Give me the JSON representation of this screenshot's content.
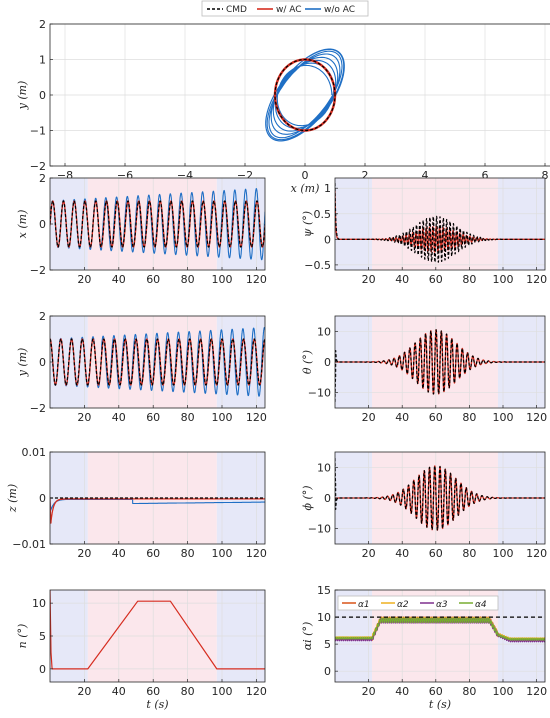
{
  "legend": {
    "entries": [
      {
        "label": "CMD",
        "color": "#000000",
        "style": "dashed"
      },
      {
        "label": "w/ AC",
        "color": "#D62D20",
        "style": "solid"
      },
      {
        "label": "w/o AC",
        "color": "#1F6FC5",
        "style": "solid"
      }
    ]
  },
  "colors": {
    "cmd": "#000000",
    "with_ac": "#D62D20",
    "without_ac": "#1F6FC5",
    "phase_blue": "#E6E8F8",
    "phase_pink": "#FBE7EC",
    "grid": "#DEDEDE",
    "alpha1": "#D95319",
    "alpha2": "#EDB120",
    "alpha3": "#7E2F8E",
    "alpha4": "#77AC30"
  },
  "chart_data": [
    {
      "id": "xy",
      "type": "line",
      "xlabel": "x (m)",
      "ylabel": "y (m)",
      "xlim": [
        -8.5,
        8.5
      ],
      "ylim": [
        -2,
        2
      ],
      "xticks": [
        -8,
        -6,
        -4,
        -2,
        0,
        2,
        4,
        6,
        8
      ],
      "yticks": [
        -2,
        -1,
        0,
        1,
        2
      ],
      "grid": true,
      "series": [
        {
          "key": "cmd",
          "description": "circle of radius about 1.0 m centered at origin"
        },
        {
          "key": "with_ac",
          "description": "circle of radius about 1.0 m tracking command"
        },
        {
          "key": "without_ac",
          "description": "tilted elliptical loops reaching about x 1.5, y 1.1"
        }
      ]
    },
    {
      "id": "x_t",
      "type": "line",
      "xlabel": "",
      "ylabel": "x (m)",
      "xlim": [
        0,
        125
      ],
      "ylim": [
        -2,
        2
      ],
      "xticks": [
        20,
        40,
        60,
        80,
        100,
        120
      ],
      "yticks": [
        -2,
        0,
        2
      ],
      "grid": true,
      "phases": [
        [
          0,
          22,
          "blue"
        ],
        [
          22,
          97,
          "pink"
        ],
        [
          97,
          125,
          "blue"
        ]
      ],
      "series": [
        {
          "key": "cmd",
          "amplitude": 1.0,
          "frequency_hz": 0.16
        },
        {
          "key": "with_ac",
          "amplitude": 1.0,
          "frequency_hz": 0.16
        },
        {
          "key": "without_ac",
          "amplitude_start": 1.0,
          "amplitude_end": 1.55,
          "frequency_hz": 0.16
        }
      ]
    },
    {
      "id": "psi_t",
      "type": "line",
      "xlabel": "",
      "ylabel": "ψ (°)",
      "xlim": [
        0,
        125
      ],
      "ylim": [
        -0.6,
        1.2
      ],
      "xticks": [
        20,
        40,
        60,
        80,
        100,
        120
      ],
      "yticks": [
        -0.5,
        0,
        0.5,
        1
      ],
      "grid": true,
      "phases": [
        [
          0,
          22,
          "blue"
        ],
        [
          22,
          97,
          "pink"
        ],
        [
          97,
          125,
          "blue"
        ]
      ],
      "series": [
        {
          "key": "cmd",
          "peak": 0.45,
          "peak_time": 60
        },
        {
          "key": "with_ac",
          "peak": 0.25,
          "peak_time": 60
        }
      ]
    },
    {
      "id": "y_t",
      "type": "line",
      "xlabel": "",
      "ylabel": "y (m)",
      "xlim": [
        0,
        125
      ],
      "ylim": [
        -2,
        2
      ],
      "xticks": [
        20,
        40,
        60,
        80,
        100,
        120
      ],
      "yticks": [
        -2,
        0,
        2
      ],
      "grid": true,
      "phases": [
        [
          0,
          22,
          "blue"
        ],
        [
          22,
          97,
          "pink"
        ],
        [
          97,
          125,
          "blue"
        ]
      ],
      "series": [
        {
          "key": "cmd",
          "amplitude": 1.0,
          "frequency_hz": 0.16
        },
        {
          "key": "with_ac",
          "amplitude": 1.0,
          "frequency_hz": 0.16
        },
        {
          "key": "without_ac",
          "amplitude_start": 1.0,
          "amplitude_end": 1.5,
          "frequency_hz": 0.16
        }
      ]
    },
    {
      "id": "theta_t",
      "type": "line",
      "xlabel": "",
      "ylabel": "θ (°)",
      "xlim": [
        0,
        125
      ],
      "ylim": [
        -15,
        15
      ],
      "xticks": [
        20,
        40,
        60,
        80,
        100,
        120
      ],
      "yticks": [
        -10,
        0,
        10
      ],
      "grid": true,
      "phases": [
        [
          0,
          22,
          "blue"
        ],
        [
          22,
          97,
          "pink"
        ],
        [
          97,
          125,
          "blue"
        ]
      ],
      "series": [
        {
          "key": "cmd",
          "peak": 10.5,
          "peak_time": 60
        },
        {
          "key": "with_ac",
          "peak": 10.5,
          "peak_time": 60
        }
      ]
    },
    {
      "id": "z_t",
      "type": "line",
      "xlabel": "",
      "ylabel": "z (m)",
      "xlim": [
        0,
        125
      ],
      "ylim": [
        -0.01,
        0.01
      ],
      "xticks": [
        20,
        40,
        60,
        80,
        100,
        120
      ],
      "yticks": [
        -0.01,
        0,
        0.01
      ],
      "yticklabels": [
        "-0.01",
        "0",
        "0.01"
      ],
      "grid": true,
      "phases": [
        [
          0,
          22,
          "blue"
        ],
        [
          22,
          97,
          "pink"
        ],
        [
          97,
          125,
          "blue"
        ]
      ],
      "series": [
        {
          "key": "cmd",
          "value": 0
        },
        {
          "key": "with_ac",
          "initial_dip": -0.0075,
          "value": -0.0002
        },
        {
          "key": "without_ac",
          "initial_dip": -0.003,
          "value_after_50s": -0.0012
        }
      ]
    },
    {
      "id": "phi_t",
      "type": "line",
      "xlabel": "",
      "ylabel": "ϕ (°)",
      "xlim": [
        0,
        125
      ],
      "ylim": [
        -15,
        15
      ],
      "xticks": [
        20,
        40,
        60,
        80,
        100,
        120
      ],
      "yticks": [
        -10,
        0,
        10
      ],
      "grid": true,
      "phases": [
        [
          0,
          22,
          "blue"
        ],
        [
          22,
          97,
          "pink"
        ],
        [
          97,
          125,
          "blue"
        ]
      ],
      "series": [
        {
          "key": "cmd",
          "peak": 10.5,
          "peak_time": 60
        },
        {
          "key": "with_ac",
          "peak": 10.5,
          "peak_time": 60
        }
      ]
    },
    {
      "id": "n_t",
      "type": "line",
      "xlabel": "t (s)",
      "ylabel": "n (°)",
      "xlim": [
        0,
        125
      ],
      "ylim": [
        -2,
        12
      ],
      "xticks": [
        20,
        40,
        60,
        80,
        100,
        120
      ],
      "yticks": [
        0,
        5,
        10
      ],
      "grid": true,
      "phases": [
        [
          0,
          22,
          "blue"
        ],
        [
          22,
          97,
          "pink"
        ],
        [
          97,
          125,
          "blue"
        ]
      ],
      "series": [
        {
          "key": "with_ac",
          "x": [
            0,
            0.6,
            1.2,
            22,
            51,
            70,
            97,
            125
          ],
          "y": [
            12,
            2.5,
            0,
            0,
            10.3,
            10.3,
            0,
            0
          ]
        }
      ]
    },
    {
      "id": "alpha_t",
      "type": "line",
      "xlabel": "t (s)",
      "ylabel": "αi (°)",
      "xlim": [
        0,
        125
      ],
      "ylim": [
        -2,
        15
      ],
      "xticks": [
        20,
        40,
        60,
        80,
        100,
        120
      ],
      "yticks": [
        0,
        5,
        10,
        15
      ],
      "grid": true,
      "phases": [
        [
          0,
          22,
          "blue"
        ],
        [
          22,
          97,
          "pink"
        ],
        [
          97,
          125,
          "blue"
        ]
      ],
      "legend_entries": [
        "α1",
        "α2",
        "α3",
        "α4"
      ],
      "series": [
        {
          "key": "cmd",
          "value": 10
        },
        {
          "key": "alpha1",
          "x": [
            0,
            3,
            22,
            27,
            92,
            97,
            104,
            125
          ],
          "y": [
            6,
            6,
            6,
            9.6,
            9.6,
            6.8,
            5.8,
            5.8
          ]
        },
        {
          "key": "alpha2",
          "x": [
            0,
            3,
            22,
            27,
            92,
            97,
            104,
            125
          ],
          "y": [
            6.2,
            6.2,
            6.2,
            9.5,
            9.5,
            6.9,
            6.0,
            6.0
          ]
        },
        {
          "key": "alpha3",
          "x": [
            0,
            3,
            22,
            27,
            92,
            97,
            104,
            125
          ],
          "y": [
            5.8,
            5.8,
            5.8,
            9.3,
            9.3,
            6.6,
            5.6,
            5.6
          ]
        },
        {
          "key": "alpha4",
          "x": [
            0,
            3,
            22,
            27,
            92,
            97,
            104,
            125
          ],
          "y": [
            6.1,
            6.1,
            6.1,
            9.4,
            9.4,
            6.7,
            5.9,
            5.9
          ]
        }
      ]
    }
  ]
}
